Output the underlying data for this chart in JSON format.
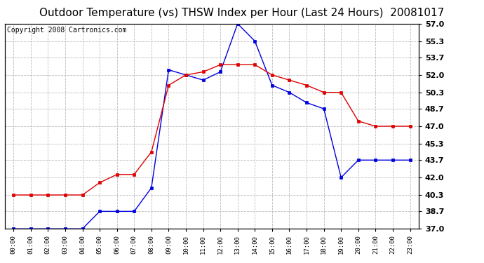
{
  "title": "Outdoor Temperature (vs) THSW Index per Hour (Last 24 Hours)  20081017",
  "copyright": "Copyright 2008 Cartronics.com",
  "hours": [
    "00:00",
    "01:00",
    "02:00",
    "03:00",
    "04:00",
    "05:00",
    "06:00",
    "07:00",
    "08:00",
    "09:00",
    "10:00",
    "11:00",
    "12:00",
    "13:00",
    "14:00",
    "15:00",
    "16:00",
    "17:00",
    "18:00",
    "19:00",
    "20:00",
    "21:00",
    "22:00",
    "23:00"
  ],
  "outdoor_temp": [
    37.0,
    37.0,
    37.0,
    37.0,
    37.0,
    38.7,
    38.7,
    38.7,
    41.0,
    52.5,
    52.0,
    51.5,
    52.3,
    57.0,
    55.3,
    51.0,
    50.3,
    49.3,
    48.7,
    42.0,
    43.7,
    43.7,
    43.7,
    43.7
  ],
  "thsw_index": [
    40.3,
    40.3,
    40.3,
    40.3,
    40.3,
    41.5,
    42.3,
    42.3,
    44.5,
    51.0,
    52.0,
    52.3,
    53.0,
    53.0,
    53.0,
    52.0,
    51.5,
    51.0,
    50.3,
    50.3,
    47.5,
    47.0,
    47.0,
    47.0
  ],
  "ylim": [
    37.0,
    57.0
  ],
  "yticks": [
    37.0,
    38.7,
    40.3,
    42.0,
    43.7,
    45.3,
    47.0,
    48.7,
    50.3,
    52.0,
    53.7,
    55.3,
    57.0
  ],
  "background_color": "#ffffff",
  "plot_bg_color": "#ffffff",
  "grid_color": "#bbbbbb",
  "temp_color": "#0000dd",
  "thsw_color": "#dd0000",
  "title_fontsize": 11,
  "copyright_fontsize": 7
}
